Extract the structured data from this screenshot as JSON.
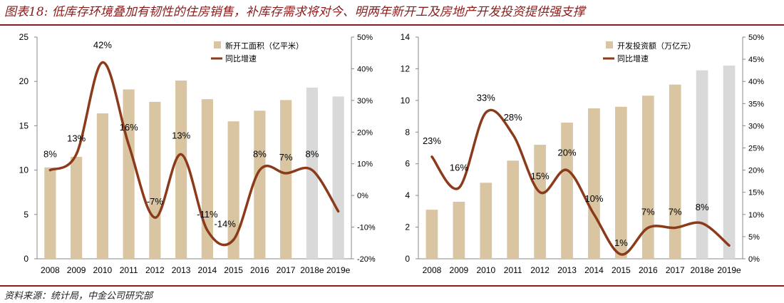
{
  "header": {
    "title": "图表18: 低库存环境叠加有韧性的住房销售，补库存需求将对今、明两年新开工及房地产开发投资提供强支撑"
  },
  "footer": {
    "source": "资料来源：统计局，中金公司研究部"
  },
  "colors": {
    "bar_actual": "#d9c5a1",
    "bar_forecast": "#d9d9d9",
    "line": "#8b3a1a",
    "rule": "#8a1c1c"
  },
  "chart_data": [
    {
      "type": "bar",
      "categories": [
        "2008",
        "2009",
        "2010",
        "2011",
        "2012",
        "2013",
        "2014",
        "2015",
        "2016",
        "2017",
        "2018e",
        "2019e"
      ],
      "forecast_from_index": 10,
      "series": [
        {
          "name": "新开工面积（亿平米）",
          "type": "bar",
          "axis": "left",
          "values": [
            10.3,
            11.5,
            16.4,
            19.1,
            17.7,
            20.1,
            18.0,
            15.5,
            16.7,
            17.9,
            19.3,
            18.3
          ]
        },
        {
          "name": "同比增速",
          "type": "line",
          "axis": "right",
          "values": [
            8,
            13,
            42,
            16,
            -7,
            13,
            -11,
            -14,
            8,
            7,
            8,
            -5
          ],
          "labels": [
            "8%",
            "13%",
            "42%",
            "16%",
            "-7%",
            "13%",
            "-11%",
            "-14%",
            "8%",
            "7%",
            "8%",
            ""
          ]
        }
      ],
      "y_left": {
        "min": 0,
        "max": 25,
        "ticks": [
          0,
          5,
          10,
          15,
          20,
          25
        ],
        "tick_labels": [
          "0",
          "5",
          "10",
          "15",
          "20",
          "25"
        ]
      },
      "y_right": {
        "min": -20,
        "max": 50,
        "ticks": [
          -20,
          -10,
          0,
          10,
          20,
          30,
          40,
          50
        ],
        "tick_labels": [
          "-20%",
          "-10%",
          "0%",
          "10%",
          "20%",
          "30%",
          "40%",
          "50%"
        ]
      },
      "grid": false,
      "legend_position": "top-right"
    },
    {
      "type": "bar",
      "categories": [
        "2008",
        "2009",
        "2010",
        "2011",
        "2012",
        "2013",
        "2014",
        "2015",
        "2016",
        "2017",
        "2018e",
        "2019e"
      ],
      "forecast_from_index": 10,
      "series": [
        {
          "name": "开发投资额（万亿元）",
          "type": "bar",
          "axis": "left",
          "values": [
            3.1,
            3.6,
            4.8,
            6.2,
            7.2,
            8.6,
            9.5,
            9.6,
            10.3,
            11.0,
            11.9,
            12.2
          ]
        },
        {
          "name": "同比增速",
          "type": "line",
          "axis": "right",
          "values": [
            23,
            16,
            33,
            28,
            15,
            20,
            10,
            1,
            7,
            7,
            8,
            3
          ],
          "labels": [
            "23%",
            "16%",
            "33%",
            "28%",
            "15%",
            "20%",
            "10%",
            "1%",
            "7%",
            "7%",
            "8%",
            ""
          ]
        }
      ],
      "y_left": {
        "min": 0,
        "max": 14,
        "ticks": [
          0,
          2,
          4,
          6,
          8,
          10,
          12,
          14
        ],
        "tick_labels": [
          "0",
          "2",
          "4",
          "6",
          "8",
          "10",
          "12",
          "14"
        ]
      },
      "y_right": {
        "min": 0,
        "max": 50,
        "ticks": [
          0,
          5,
          10,
          15,
          20,
          25,
          30,
          35,
          40,
          45,
          50
        ],
        "tick_labels": [
          "0%",
          "5%",
          "10%",
          "15%",
          "20%",
          "25%",
          "30%",
          "35%",
          "40%",
          "45%",
          "50%"
        ]
      },
      "grid": false,
      "legend_position": "top-right"
    }
  ]
}
